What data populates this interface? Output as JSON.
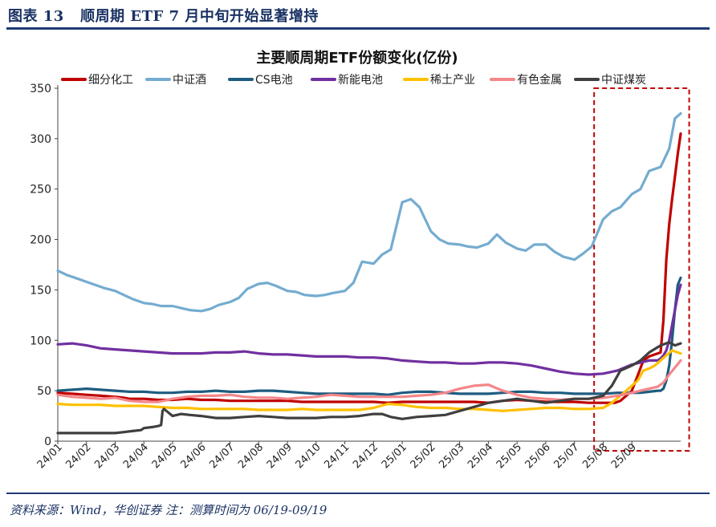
{
  "figure": {
    "label": "图表 13",
    "title": "顺周期 ETF 7 月中旬开始显著增持",
    "source": "资料来源：Wind，华创证券 注：测算时间为 06/19-09/19"
  },
  "chart_data": {
    "type": "line",
    "title": "主要顺周期ETF份额变化(亿份)",
    "xlabel": "",
    "ylabel": "",
    "ylim": [
      0,
      350
    ],
    "yticks": [
      0,
      50,
      100,
      150,
      200,
      250,
      300,
      350
    ],
    "x_start": "2024-01",
    "x_end": "2025-09-20",
    "categories": [
      "24/01",
      "24/02",
      "24/03",
      "24/04",
      "24/05",
      "24/06",
      "24/07",
      "24/08",
      "24/09",
      "24/10",
      "24/11",
      "24/12",
      "25/01",
      "25/02",
      "25/03",
      "25/04",
      "25/05",
      "25/06",
      "25/07",
      "25/08",
      "25/09"
    ],
    "highlight_box": {
      "from": 18.6,
      "to": 21.8,
      "color": "#c00000",
      "style": "dashed"
    },
    "series": [
      {
        "name": "细分化工",
        "color": "#c00000",
        "x": [
          0,
          0.5,
          1,
          1.5,
          2,
          2.3,
          2.5,
          3,
          3.5,
          4,
          4.5,
          5,
          5.5,
          6,
          6.5,
          7,
          7.5,
          8,
          8.5,
          9,
          9.5,
          10,
          10.5,
          11,
          11.5,
          12,
          12.5,
          13,
          13.5,
          14,
          14.5,
          15,
          15.5,
          16,
          16.5,
          17,
          17.5,
          18,
          18.5,
          19,
          19.2,
          19.4,
          19.6,
          19.8,
          20,
          20.2,
          20.4,
          20.6,
          20.8,
          21,
          21.1,
          21.2,
          21.3,
          21.4,
          21.5,
          21.6,
          21.7
        ],
        "values": [
          48,
          47,
          46,
          45,
          44,
          43,
          42,
          42,
          41,
          41,
          42,
          41,
          41,
          40,
          40,
          40,
          40,
          40,
          39,
          39,
          39,
          39,
          39,
          39,
          38,
          39,
          39,
          39,
          39,
          39,
          39,
          38,
          40,
          41,
          40,
          39,
          39,
          39,
          38,
          38,
          38,
          38,
          40,
          45,
          50,
          65,
          80,
          84,
          86,
          88,
          120,
          180,
          215,
          240,
          262,
          285,
          305
        ]
      },
      {
        "name": "中证酒",
        "color": "#74acd0",
        "x": [
          0,
          0.3,
          0.6,
          1,
          1.3,
          1.6,
          2,
          2.3,
          2.6,
          3,
          3.3,
          3.6,
          4,
          4.3,
          4.6,
          5,
          5.3,
          5.6,
          6,
          6.3,
          6.6,
          7,
          7.3,
          7.6,
          8,
          8.3,
          8.6,
          9,
          9.3,
          9.6,
          10,
          10.3,
          10.6,
          11,
          11.3,
          11.6,
          12,
          12.3,
          12.6,
          13,
          13.3,
          13.6,
          14,
          14.3,
          14.6,
          15,
          15.3,
          15.6,
          16,
          16.3,
          16.6,
          17,
          17.3,
          17.6,
          18,
          18.3,
          18.6,
          19,
          19.3,
          19.6,
          20,
          20.3,
          20.6,
          21,
          21.3,
          21.5,
          21.7
        ],
        "values": [
          169,
          165,
          162,
          158,
          155,
          152,
          149,
          145,
          141,
          137,
          136,
          134,
          134,
          132,
          130,
          129,
          131,
          135,
          138,
          142,
          151,
          156,
          157,
          154,
          149,
          148,
          145,
          144,
          145,
          147,
          149,
          157,
          178,
          176,
          185,
          190,
          237,
          240,
          232,
          208,
          200,
          196,
          195,
          193,
          192,
          196,
          205,
          197,
          191,
          189,
          195,
          195,
          188,
          183,
          180,
          186,
          193,
          220,
          228,
          232,
          245,
          250,
          268,
          272,
          290,
          320,
          325
        ]
      },
      {
        "name": "CS电池",
        "color": "#1e5c80",
        "x": [
          0,
          0.5,
          1,
          1.5,
          2,
          2.5,
          3,
          3.5,
          4,
          4.5,
          5,
          5.5,
          6,
          6.5,
          7,
          7.5,
          8,
          8.5,
          9,
          9.5,
          10,
          10.5,
          11,
          11.5,
          12,
          12.5,
          13,
          13.5,
          14,
          14.5,
          15,
          15.5,
          16,
          16.5,
          17,
          17.5,
          18,
          18.5,
          19,
          19.5,
          20,
          20.3,
          20.6,
          20.9,
          21.0,
          21.1,
          21.2,
          21.3,
          21.4,
          21.5,
          21.6,
          21.7
        ],
        "values": [
          50,
          51,
          52,
          51,
          50,
          49,
          49,
          48,
          48,
          49,
          49,
          50,
          49,
          49,
          50,
          50,
          49,
          48,
          47,
          47,
          47,
          47,
          47,
          46,
          48,
          49,
          49,
          48,
          47,
          47,
          47,
          48,
          49,
          49,
          48,
          48,
          47,
          47,
          47,
          48,
          48,
          48,
          49,
          50,
          50,
          52,
          60,
          75,
          100,
          130,
          155,
          162
        ]
      },
      {
        "name": "新能电池",
        "color": "#7030a0",
        "x": [
          0,
          0.5,
          1,
          1.5,
          2,
          2.5,
          3,
          3.5,
          4,
          4.5,
          5,
          5.5,
          6,
          6.5,
          7,
          7.5,
          8,
          8.5,
          9,
          9.5,
          10,
          10.5,
          11,
          11.5,
          12,
          12.5,
          13,
          13.5,
          14,
          14.5,
          15,
          15.5,
          16,
          16.5,
          17,
          17.5,
          18,
          18.5,
          19,
          19.5,
          20,
          20.3,
          20.6,
          20.9,
          21.0,
          21.1,
          21.2,
          21.3,
          21.4,
          21.5,
          21.6,
          21.7
        ],
        "values": [
          96,
          97,
          95,
          92,
          91,
          90,
          89,
          88,
          87,
          87,
          87,
          88,
          88,
          89,
          87,
          86,
          86,
          85,
          84,
          84,
          84,
          83,
          83,
          82,
          80,
          79,
          78,
          78,
          77,
          77,
          78,
          78,
          77,
          75,
          72,
          69,
          67,
          66,
          67,
          70,
          76,
          78,
          80,
          80,
          82,
          85,
          90,
          100,
          115,
          130,
          145,
          155
        ]
      },
      {
        "name": "稀土产业",
        "color": "#ffc000",
        "x": [
          0,
          0.5,
          1,
          1.5,
          2,
          2.5,
          3,
          3.5,
          4,
          4.5,
          5,
          5.5,
          6,
          6.5,
          7,
          7.5,
          8,
          8.5,
          9,
          9.5,
          10,
          10.5,
          11,
          11.5,
          12,
          12.5,
          13,
          13.5,
          14,
          14.5,
          15,
          15.5,
          16,
          16.5,
          17,
          17.5,
          18,
          18.5,
          19,
          19.3,
          19.6,
          20,
          20.2,
          20.4,
          20.6,
          20.8,
          21,
          21.2,
          21.4,
          21.6,
          21.7
        ],
        "values": [
          37,
          36,
          36,
          36,
          35,
          35,
          35,
          34,
          33,
          33,
          32,
          32,
          32,
          32,
          31,
          31,
          31,
          32,
          31,
          31,
          31,
          31,
          33,
          37,
          36,
          34,
          33,
          33,
          32,
          32,
          31,
          30,
          31,
          32,
          33,
          33,
          32,
          32,
          33,
          38,
          45,
          55,
          60,
          70,
          72,
          75,
          80,
          85,
          90,
          88,
          87
        ]
      },
      {
        "name": "有色金属",
        "color": "#f4878a",
        "x": [
          0,
          0.5,
          1,
          1.5,
          2,
          2.5,
          3,
          3.5,
          4,
          4.5,
          5,
          5.5,
          6,
          6.5,
          7,
          7.5,
          8,
          8.5,
          9,
          9.5,
          10,
          10.5,
          11,
          11.5,
          12,
          12.5,
          13,
          13.5,
          14,
          14.5,
          15,
          15.5,
          16,
          16.5,
          17,
          17.5,
          18,
          18.5,
          19,
          19.5,
          20,
          20.3,
          20.6,
          20.9,
          21.1,
          21.3,
          21.5,
          21.7
        ],
        "values": [
          46,
          44,
          43,
          42,
          43,
          40,
          39,
          39,
          42,
          44,
          45,
          45,
          46,
          44,
          43,
          43,
          42,
          43,
          44,
          46,
          45,
          44,
          44,
          44,
          44,
          45,
          46,
          48,
          52,
          55,
          56,
          50,
          46,
          43,
          42,
          41,
          42,
          42,
          43,
          45,
          48,
          50,
          52,
          54,
          58,
          66,
          73,
          80
        ]
      },
      {
        "name": "中证煤炭",
        "color": "#3f3f3f",
        "x": [
          0,
          0.5,
          1,
          1.5,
          2,
          2.3,
          2.6,
          2.9,
          3,
          3.3,
          3.5,
          3.6,
          3.65,
          3.7,
          4,
          4.3,
          4.6,
          5,
          5.5,
          6,
          6.5,
          7,
          7.5,
          8,
          8.5,
          9,
          9.5,
          10,
          10.5,
          11,
          11.3,
          11.6,
          12,
          12.5,
          13,
          13.5,
          14,
          14.5,
          15,
          15.5,
          16,
          16.5,
          17,
          17.5,
          18,
          18.5,
          19,
          19.3,
          19.6,
          20,
          20.3,
          20.6,
          21,
          21.3,
          21.5,
          21.7
        ],
        "values": [
          8,
          8,
          8,
          8,
          8,
          9,
          10,
          11,
          13,
          14,
          15,
          16,
          30,
          32,
          25,
          27,
          26,
          25,
          23,
          23,
          24,
          25,
          24,
          23,
          23,
          23,
          24,
          24,
          25,
          27,
          27,
          24,
          22,
          24,
          25,
          26,
          30,
          34,
          38,
          40,
          42,
          40,
          38,
          40,
          42,
          42,
          45,
          55,
          70,
          75,
          80,
          88,
          95,
          98,
          95,
          97
        ]
      }
    ]
  }
}
